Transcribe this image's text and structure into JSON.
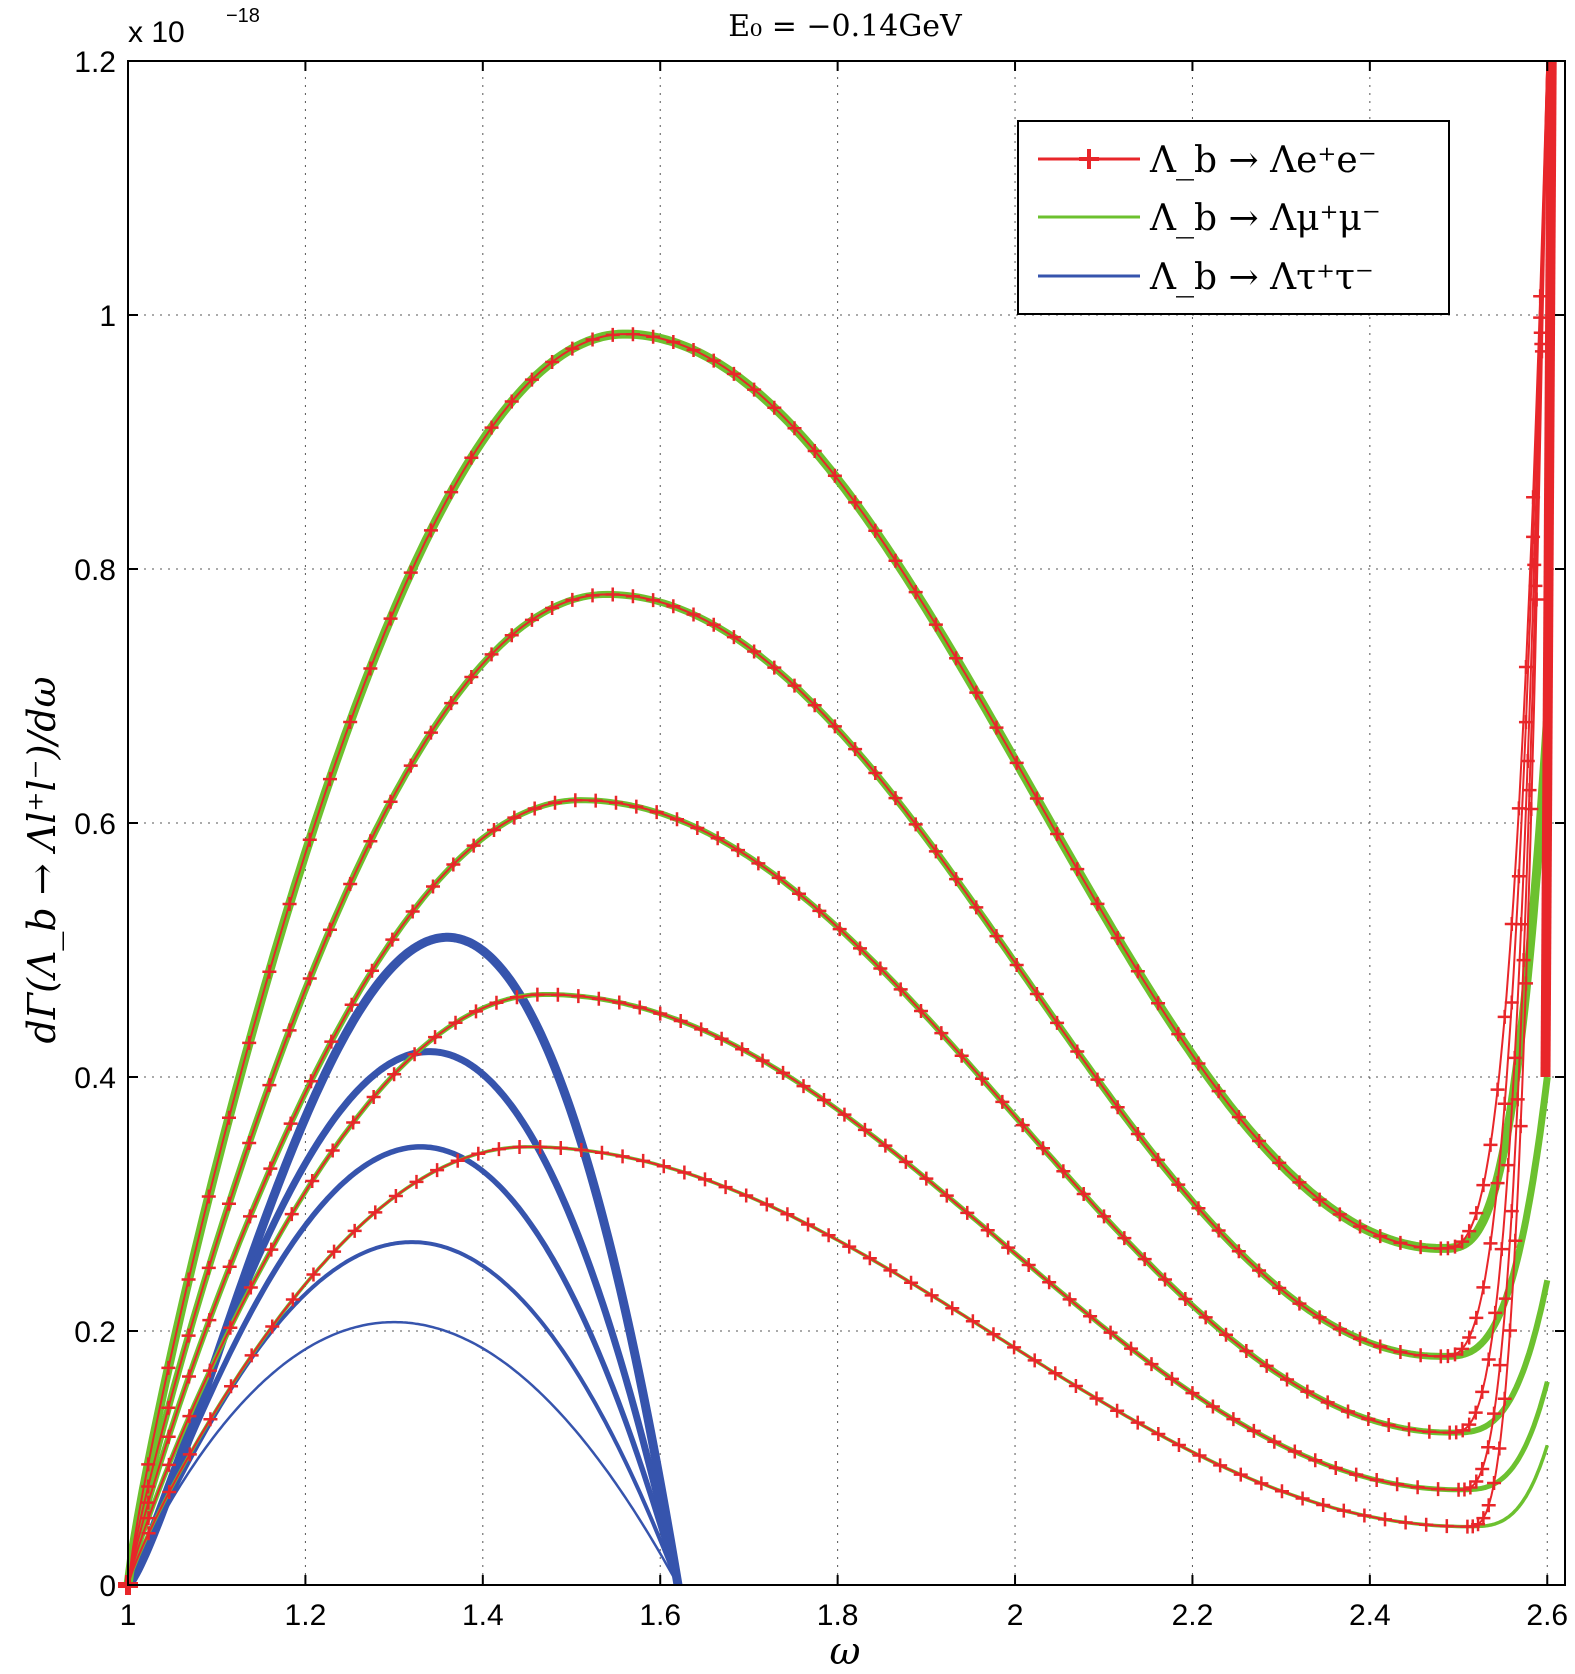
{
  "chart_data": {
    "type": "line",
    "title": "E₀ = −0.14GeV",
    "xlabel": "ω",
    "ylabel": "dΓ(Λ_b → Λl⁺l⁻)/dω",
    "y_multiplier": "x 10",
    "y_exponent": "−18",
    "xlim": [
      1,
      2.62
    ],
    "ylim": [
      0,
      1.2
    ],
    "xticks": [
      "1",
      "1.2",
      "1.4",
      "1.6",
      "1.8",
      "2",
      "2.2",
      "2.4",
      "2.6"
    ],
    "yticks": [
      "0",
      "0.2",
      "0.4",
      "0.6",
      "0.8",
      "1",
      "1.2"
    ],
    "grid": true,
    "legend_position": "top-right",
    "legend": [
      {
        "label": "Λ_b → Λe⁺e⁻",
        "color": "#e8262a",
        "marker": "+"
      },
      {
        "label": "Λ_b → Λμ⁺μ⁻",
        "color": "#6cc12f",
        "marker": "none"
      },
      {
        "label": "Λ_b → Λτ⁺τ⁻",
        "color": "#3654ad",
        "marker": "none"
      }
    ],
    "series": [
      {
        "group": "e",
        "color": "#e8262a",
        "peak": [
          1.56,
          0.985
        ],
        "min": [
          2.48,
          0.265
        ],
        "end": [
          2.6,
          1.2
        ]
      },
      {
        "group": "e",
        "color": "#e8262a",
        "peak": [
          1.54,
          0.78
        ],
        "min": [
          2.48,
          0.18
        ],
        "end": [
          2.6,
          1.2
        ]
      },
      {
        "group": "e",
        "color": "#e8262a",
        "peak": [
          1.51,
          0.618
        ],
        "min": [
          2.49,
          0.12
        ],
        "end": [
          2.6,
          1.2
        ]
      },
      {
        "group": "e",
        "color": "#e8262a",
        "peak": [
          1.47,
          0.465
        ],
        "min": [
          2.5,
          0.075
        ],
        "end": [
          2.6,
          1.2
        ]
      },
      {
        "group": "e",
        "color": "#e8262a",
        "peak": [
          1.45,
          0.345
        ],
        "min": [
          2.51,
          0.046
        ],
        "end": [
          2.6,
          1.2
        ]
      },
      {
        "group": "mu",
        "color": "#6cc12f",
        "peak": [
          1.56,
          0.985
        ],
        "min": [
          2.48,
          0.265
        ],
        "end": [
          2.6,
          0.68
        ]
      },
      {
        "group": "mu",
        "color": "#6cc12f",
        "peak": [
          1.54,
          0.78
        ],
        "min": [
          2.48,
          0.18
        ],
        "end": [
          2.6,
          0.4
        ]
      },
      {
        "group": "mu",
        "color": "#6cc12f",
        "peak": [
          1.51,
          0.618
        ],
        "min": [
          2.49,
          0.12
        ],
        "end": [
          2.6,
          0.24
        ]
      },
      {
        "group": "mu",
        "color": "#6cc12f",
        "peak": [
          1.47,
          0.465
        ],
        "min": [
          2.5,
          0.075
        ],
        "end": [
          2.6,
          0.16
        ]
      },
      {
        "group": "mu",
        "color": "#6cc12f",
        "peak": [
          1.45,
          0.345
        ],
        "min": [
          2.51,
          0.046
        ],
        "end": [
          2.6,
          0.11
        ]
      },
      {
        "group": "tau",
        "color": "#3654ad",
        "peak": [
          1.36,
          0.51
        ],
        "end": [
          1.62,
          0
        ]
      },
      {
        "group": "tau",
        "color": "#3654ad",
        "peak": [
          1.34,
          0.42
        ],
        "end": [
          1.62,
          0
        ]
      },
      {
        "group": "tau",
        "color": "#3654ad",
        "peak": [
          1.33,
          0.345
        ],
        "end": [
          1.62,
          0
        ]
      },
      {
        "group": "tau",
        "color": "#3654ad",
        "peak": [
          1.32,
          0.27
        ],
        "end": [
          1.62,
          0
        ]
      },
      {
        "group": "tau",
        "color": "#3654ad",
        "peak": [
          1.3,
          0.207
        ],
        "end": [
          1.62,
          0
        ]
      }
    ]
  }
}
